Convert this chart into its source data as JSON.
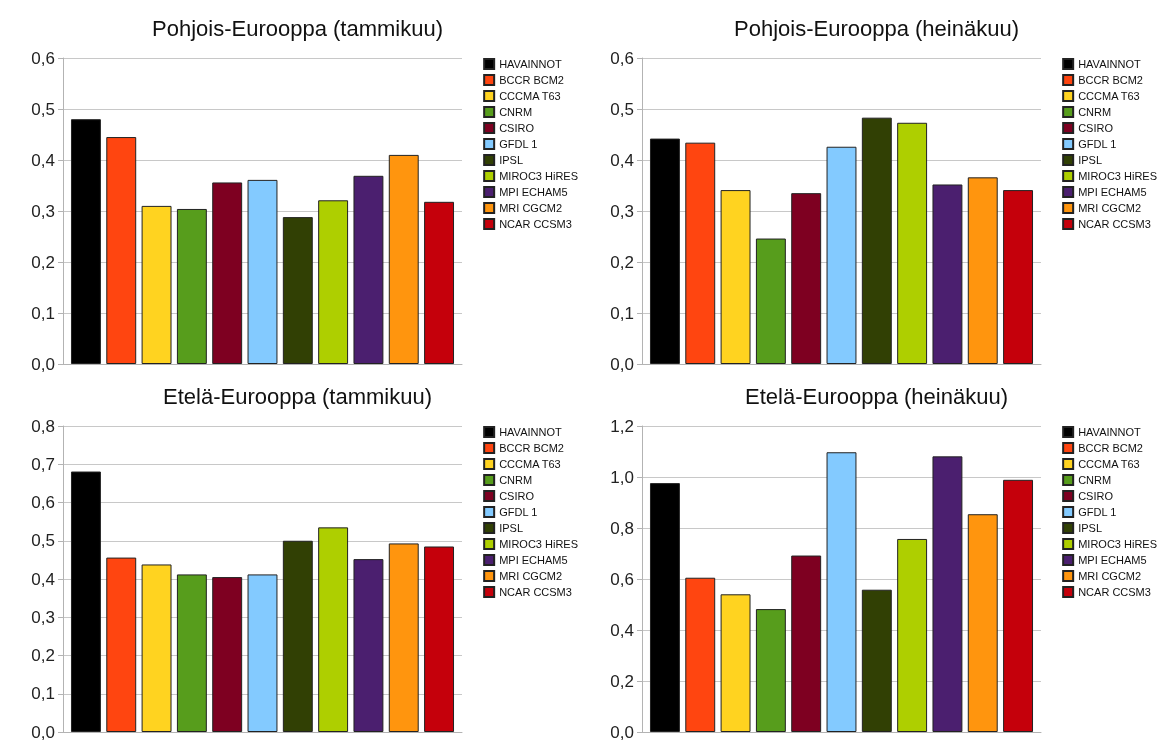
{
  "chart_data": [
    {
      "type": "bar",
      "title": "Pohjois-Eurooppa (tammikuu)",
      "categories": [
        null
      ],
      "ylim": [
        0,
        0.6
      ],
      "yticks": [
        {
          "value": 0,
          "label": "0,0"
        },
        {
          "value": 0.1,
          "label": "0,1"
        },
        {
          "value": 0.2,
          "label": "0,2"
        },
        {
          "value": 0.3,
          "label": "0,3"
        },
        {
          "value": 0.4,
          "label": "0,4"
        },
        {
          "value": 0.5,
          "label": "0,5"
        },
        {
          "value": 0.6,
          "label": "0,6"
        }
      ],
      "grid": "y",
      "legend": "right",
      "series": [
        {
          "name": "HAVAINNOT",
          "color": "#000000",
          "values": [
            0.48
          ]
        },
        {
          "name": "BCCR BCM2",
          "color": "#ff4510",
          "values": [
            0.445
          ]
        },
        {
          "name": "CCCMA T63",
          "color": "#ffd320",
          "values": [
            0.31
          ]
        },
        {
          "name": "CNRM",
          "color": "#579d1c",
          "values": [
            0.304
          ]
        },
        {
          "name": "CSIRO",
          "color": "#7e0021",
          "values": [
            0.356
          ]
        },
        {
          "name": "GFDL 1",
          "color": "#83caff",
          "values": [
            0.361
          ]
        },
        {
          "name": "IPSL",
          "color": "#314004",
          "values": [
            0.288
          ]
        },
        {
          "name": "MIROC3 HiRES",
          "color": "#aecf00",
          "values": [
            0.321
          ]
        },
        {
          "name": "MPI ECHAM5",
          "color": "#4b1f6f",
          "values": [
            0.369
          ]
        },
        {
          "name": "MRI CGCM2",
          "color": "#ff950e",
          "values": [
            0.41
          ]
        },
        {
          "name": "NCAR CCSM3",
          "color": "#c5000b",
          "values": [
            0.318
          ]
        }
      ]
    },
    {
      "type": "bar",
      "title": "Pohjois-Eurooppa (heinäkuu)",
      "categories": [
        null
      ],
      "ylim": [
        0,
        0.6
      ],
      "yticks": [
        {
          "value": 0,
          "label": "0,0"
        },
        {
          "value": 0.1,
          "label": "0,1"
        },
        {
          "value": 0.2,
          "label": "0,2"
        },
        {
          "value": 0.3,
          "label": "0,3"
        },
        {
          "value": 0.4,
          "label": "0,4"
        },
        {
          "value": 0.5,
          "label": "0,5"
        },
        {
          "value": 0.6,
          "label": "0,6"
        }
      ],
      "grid": "y",
      "legend": "right",
      "series": [
        {
          "name": "HAVAINNOT",
          "color": "#000000",
          "values": [
            0.442
          ]
        },
        {
          "name": "BCCR BCM2",
          "color": "#ff4510",
          "values": [
            0.434
          ]
        },
        {
          "name": "CCCMA T63",
          "color": "#ffd320",
          "values": [
            0.341
          ]
        },
        {
          "name": "CNRM",
          "color": "#579d1c",
          "values": [
            0.246
          ]
        },
        {
          "name": "CSIRO",
          "color": "#7e0021",
          "values": [
            0.335
          ]
        },
        {
          "name": "GFDL 1",
          "color": "#83caff",
          "values": [
            0.426
          ]
        },
        {
          "name": "IPSL",
          "color": "#314004",
          "values": [
            0.483
          ]
        },
        {
          "name": "MIROC3 HiRES",
          "color": "#aecf00",
          "values": [
            0.473
          ]
        },
        {
          "name": "MPI ECHAM5",
          "color": "#4b1f6f",
          "values": [
            0.352
          ]
        },
        {
          "name": "MRI CGCM2",
          "color": "#ff950e",
          "values": [
            0.366
          ]
        },
        {
          "name": "NCAR CCSM3",
          "color": "#c5000b",
          "values": [
            0.341
          ]
        }
      ]
    },
    {
      "type": "bar",
      "title": "Etelä-Eurooppa (tammikuu)",
      "categories": [
        null
      ],
      "ylim": [
        0,
        0.8
      ],
      "yticks": [
        {
          "value": 0,
          "label": "0,0"
        },
        {
          "value": 0.1,
          "label": "0,1"
        },
        {
          "value": 0.2,
          "label": "0,2"
        },
        {
          "value": 0.3,
          "label": "0,3"
        },
        {
          "value": 0.4,
          "label": "0,4"
        },
        {
          "value": 0.5,
          "label": "0,5"
        },
        {
          "value": 0.6,
          "label": "0,6"
        },
        {
          "value": 0.7,
          "label": "0,7"
        },
        {
          "value": 0.8,
          "label": "0,8"
        }
      ],
      "grid": "y",
      "legend": "right",
      "series": [
        {
          "name": "HAVAINNOT",
          "color": "#000000",
          "values": [
            0.681
          ]
        },
        {
          "name": "BCCR BCM2",
          "color": "#ff4510",
          "values": [
            0.456
          ]
        },
        {
          "name": "CCCMA T63",
          "color": "#ffd320",
          "values": [
            0.438
          ]
        },
        {
          "name": "CNRM",
          "color": "#579d1c",
          "values": [
            0.412
          ]
        },
        {
          "name": "CSIRO",
          "color": "#7e0021",
          "values": [
            0.405
          ]
        },
        {
          "name": "GFDL 1",
          "color": "#83caff",
          "values": [
            0.412
          ]
        },
        {
          "name": "IPSL",
          "color": "#314004",
          "values": [
            0.5
          ]
        },
        {
          "name": "MIROC3 HiRES",
          "color": "#aecf00",
          "values": [
            0.535
          ]
        },
        {
          "name": "MPI ECHAM5",
          "color": "#4b1f6f",
          "values": [
            0.452
          ]
        },
        {
          "name": "MRI CGCM2",
          "color": "#ff950e",
          "values": [
            0.493
          ]
        },
        {
          "name": "NCAR CCSM3",
          "color": "#c5000b",
          "values": [
            0.485
          ]
        }
      ]
    },
    {
      "type": "bar",
      "title": "Etelä-Eurooppa (heinäkuu)",
      "categories": [
        null
      ],
      "ylim": [
        0,
        1.2
      ],
      "yticks": [
        {
          "value": 0,
          "label": "0,0"
        },
        {
          "value": 0.2,
          "label": "0,2"
        },
        {
          "value": 0.4,
          "label": "0,4"
        },
        {
          "value": 0.6,
          "label": "0,6"
        },
        {
          "value": 0.8,
          "label": "0,8"
        },
        {
          "value": 1,
          "label": "1,0"
        },
        {
          "value": 1.2,
          "label": "1,2"
        }
      ],
      "grid": "y",
      "legend": "right",
      "series": [
        {
          "name": "HAVAINNOT",
          "color": "#000000",
          "values": [
            0.976
          ]
        },
        {
          "name": "BCCR BCM2",
          "color": "#ff4510",
          "values": [
            0.605
          ]
        },
        {
          "name": "CCCMA T63",
          "color": "#ffd320",
          "values": [
            0.54
          ]
        },
        {
          "name": "CNRM",
          "color": "#579d1c",
          "values": [
            0.482
          ]
        },
        {
          "name": "CSIRO",
          "color": "#7e0021",
          "values": [
            0.692
          ]
        },
        {
          "name": "GFDL 1",
          "color": "#83caff",
          "values": [
            1.097
          ]
        },
        {
          "name": "IPSL",
          "color": "#314004",
          "values": [
            0.558
          ]
        },
        {
          "name": "MIROC3 HiRES",
          "color": "#aecf00",
          "values": [
            0.757
          ]
        },
        {
          "name": "MPI ECHAM5",
          "color": "#4b1f6f",
          "values": [
            1.081
          ]
        },
        {
          "name": "MRI CGCM2",
          "color": "#ff950e",
          "values": [
            0.854
          ]
        },
        {
          "name": "NCAR CCSM3",
          "color": "#c5000b",
          "values": [
            0.989
          ]
        }
      ]
    }
  ]
}
